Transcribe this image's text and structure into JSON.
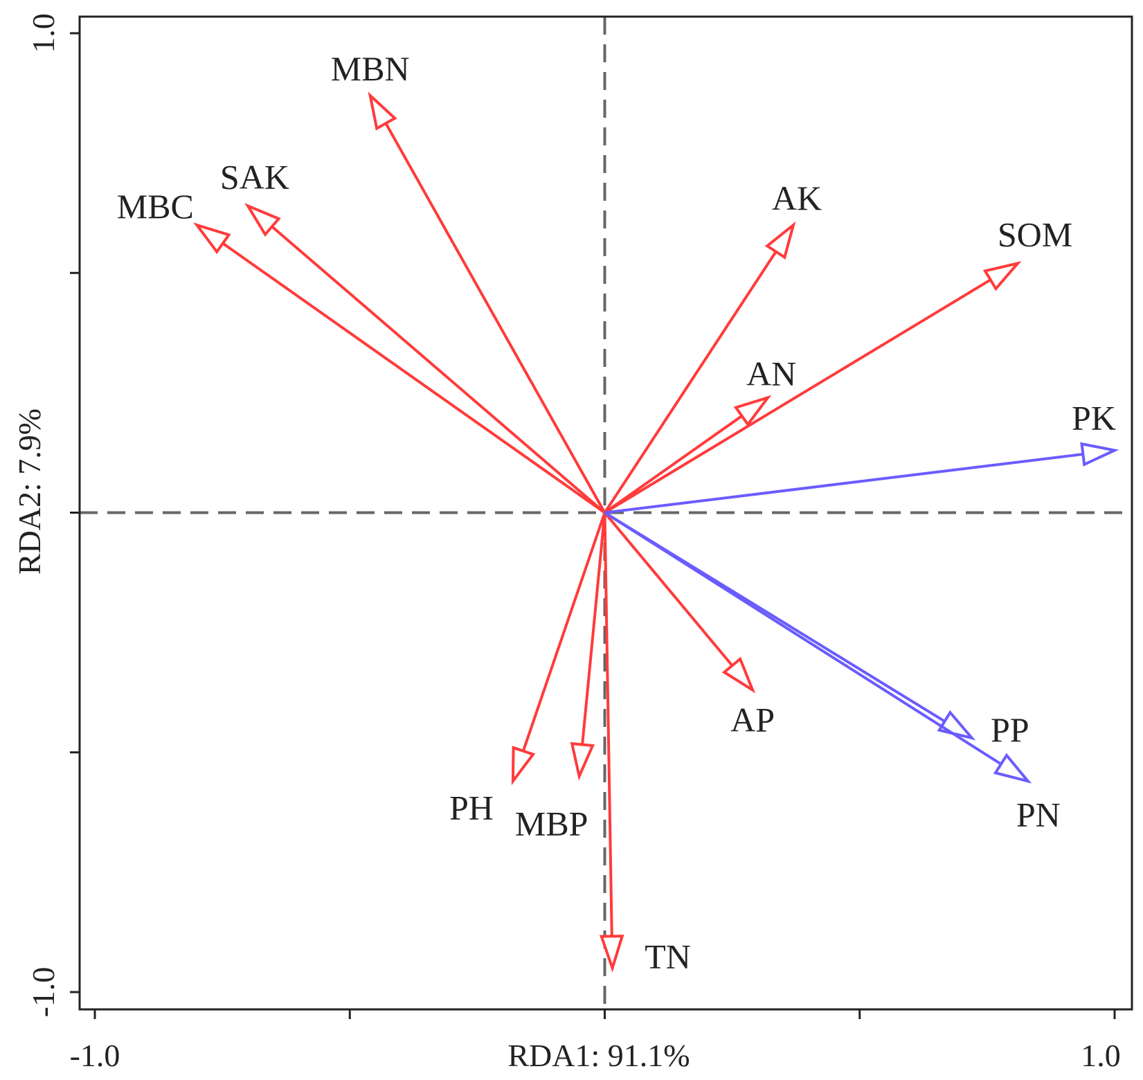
{
  "chart_data": {
    "type": "biplot",
    "xlabel_text": "RDA1:  91.1%",
    "ylabel_text": "RDA2: 7.9%",
    "x_axis": {
      "name": "RDA1",
      "percent": 91.1
    },
    "y_axis": {
      "name": "RDA2",
      "percent": 7.9
    },
    "xlim": [
      -1.0,
      1.0
    ],
    "ylim": [
      -1.0,
      1.0
    ],
    "x_tick_values": [
      -1.0,
      -0.5,
      0.0,
      0.5,
      1.0
    ],
    "y_tick_values": [
      -1.0,
      -0.5,
      0.0,
      0.5,
      1.0
    ],
    "x_tick_labels": [
      "-1.0",
      "",
      "",
      "",
      "1.0"
    ],
    "y_tick_labels": [
      "-1.0",
      "",
      "",
      "",
      "1.0"
    ],
    "zero_lines": "dashed",
    "colors": {
      "environment": "#ff3b3b",
      "response": "#6a5cff",
      "zero_line": "#666666",
      "frame": "#222222"
    },
    "groups": [
      {
        "name": "environment",
        "color": "#ff3b3b",
        "vectors": [
          {
            "label": "MBN",
            "x": -0.46,
            "y": 0.87
          },
          {
            "label": "MBC",
            "x": -0.8,
            "y": 0.6
          },
          {
            "label": "SAK",
            "x": -0.7,
            "y": 0.64
          },
          {
            "label": "AK",
            "x": 0.37,
            "y": 0.6
          },
          {
            "label": "SOM",
            "x": 0.81,
            "y": 0.52
          },
          {
            "label": "AN",
            "x": 0.32,
            "y": 0.24
          },
          {
            "label": "AP",
            "x": 0.29,
            "y": -0.37
          },
          {
            "label": "PH",
            "x": -0.18,
            "y": -0.56
          },
          {
            "label": "MBP",
            "x": -0.05,
            "y": -0.55
          },
          {
            "label": "TN",
            "x": 0.015,
            "y": -0.95
          }
        ]
      },
      {
        "name": "response",
        "color": "#6a5cff",
        "vectors": [
          {
            "label": "PK",
            "x": 1.0,
            "y": 0.13
          },
          {
            "label": "PP",
            "x": 0.72,
            "y": -0.47
          },
          {
            "label": "PN",
            "x": 0.83,
            "y": -0.56
          }
        ]
      }
    ]
  }
}
